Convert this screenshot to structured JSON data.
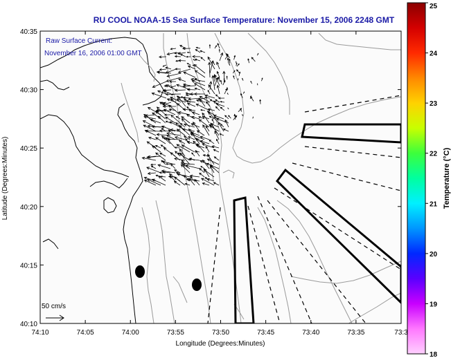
{
  "title": "RU COOL  NOAA-15  Sea Surface Temperature:  November 15, 2006 2248 GMT",
  "inset": {
    "line1": "Raw Surface Current:",
    "line2": "November 16, 2006 01:00 GMT"
  },
  "scale": {
    "label": "50 cm/s"
  },
  "x_axis": {
    "label": "Longitude (Degrees:Minutes)",
    "ticks": [
      "74:10",
      "74:05",
      "74:00",
      "73:55",
      "73:50",
      "73:45",
      "73:40",
      "73:35",
      "73:3"
    ]
  },
  "y_axis": {
    "label": "Latitude (Degrees:Minutes)",
    "ticks": [
      "40:35",
      "40:30",
      "40:25",
      "40:20",
      "40:15",
      "40:10"
    ]
  },
  "colorbar": {
    "label": "Temperature (°C)",
    "ticks": [
      "25",
      "24",
      "23",
      "22",
      "21",
      "20",
      "19",
      "18"
    ],
    "colors": [
      "#8b0000",
      "#d40000",
      "#ff2a00",
      "#ff8800",
      "#ffd200",
      "#c8ff00",
      "#3cff3c",
      "#00ffa0",
      "#00f0ff",
      "#0096ff",
      "#0028ff",
      "#5a00ff",
      "#c800ff",
      "#ff78ff",
      "#ffd0ff"
    ]
  },
  "colors": {
    "title": "#1a1aa6",
    "contour": "#9a9a9a",
    "vector": "#000000"
  }
}
